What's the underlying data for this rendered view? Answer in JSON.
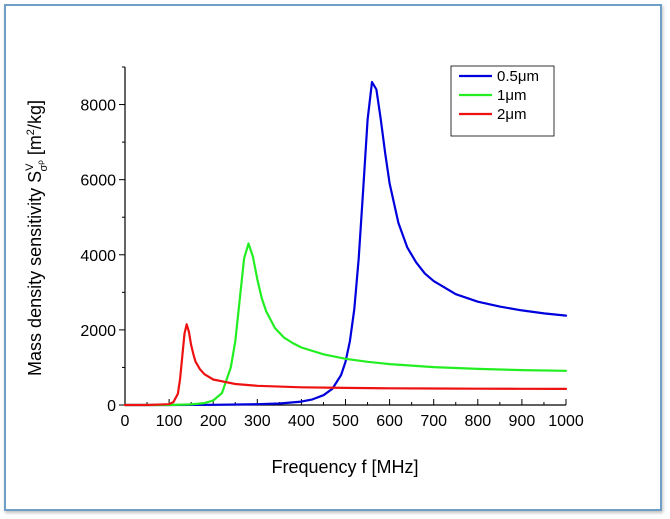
{
  "chart_data": {
    "type": "line",
    "xlabel": "Frequency f [MHz]",
    "ylabel": {
      "prefix": "Mass density sensitivity S",
      "sup": "V",
      "sub": "σ",
      "subsup": "ρ",
      "unit_open": " [m",
      "unit_sup": "2",
      "unit_close": "/kg]"
    },
    "xlim": [
      0,
      1000
    ],
    "ylim": [
      0,
      9000
    ],
    "x_ticks": [
      "0",
      "100",
      "200",
      "300",
      "400",
      "500",
      "600",
      "700",
      "800",
      "900",
      "1000"
    ],
    "y_ticks": [
      "0",
      "2000",
      "4000",
      "6000",
      "8000"
    ],
    "legend_position": "top-right",
    "grid": false,
    "series": [
      {
        "name": "0.5μm",
        "color": "#0000dd",
        "x": [
          0,
          100,
          200,
          300,
          350,
          400,
          425,
          450,
          470,
          490,
          500,
          510,
          520,
          530,
          540,
          550,
          560,
          570,
          580,
          590,
          600,
          620,
          640,
          660,
          680,
          700,
          750,
          800,
          850,
          900,
          950,
          1000
        ],
        "y": [
          0,
          0,
          5,
          20,
          40,
          90,
          150,
          260,
          430,
          800,
          1150,
          1700,
          2550,
          3900,
          5700,
          7600,
          8600,
          8400,
          7600,
          6700,
          5900,
          4850,
          4200,
          3800,
          3500,
          3300,
          2950,
          2750,
          2620,
          2520,
          2440,
          2380
        ]
      },
      {
        "name": "1μm",
        "color": "#22ee22",
        "x": [
          0,
          100,
          150,
          180,
          200,
          220,
          240,
          250,
          260,
          270,
          280,
          290,
          300,
          310,
          320,
          340,
          360,
          380,
          400,
          450,
          500,
          550,
          600,
          700,
          800,
          900,
          1000
        ],
        "y": [
          0,
          0,
          15,
          50,
          120,
          320,
          1000,
          1700,
          2800,
          3900,
          4300,
          3950,
          3350,
          2850,
          2500,
          2050,
          1800,
          1650,
          1530,
          1350,
          1230,
          1150,
          1090,
          1010,
          960,
          930,
          910
        ]
      },
      {
        "name": "2μm",
        "color": "#ee1111",
        "x": [
          0,
          50,
          100,
          110,
          120,
          125,
          130,
          135,
          140,
          145,
          150,
          155,
          160,
          170,
          180,
          200,
          250,
          300,
          400,
          500,
          600,
          700,
          800,
          900,
          1000
        ],
        "y": [
          0,
          0,
          20,
          80,
          300,
          700,
          1300,
          1900,
          2150,
          1950,
          1600,
          1350,
          1150,
          950,
          820,
          680,
          560,
          510,
          470,
          455,
          445,
          440,
          435,
          432,
          430
        ]
      }
    ]
  }
}
